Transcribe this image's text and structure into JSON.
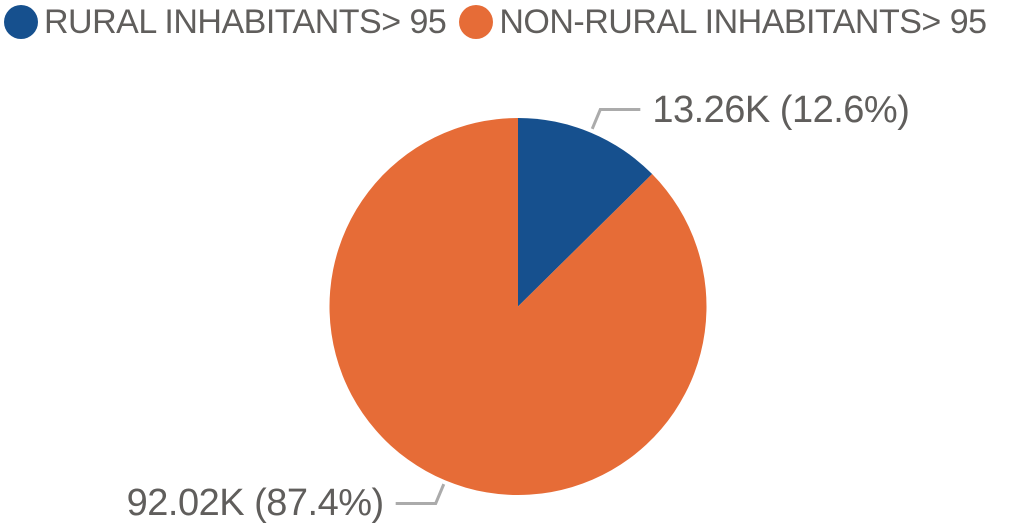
{
  "legend": {
    "items": [
      {
        "label": "RURAL INHABITANTS> 95",
        "color": "#16508E"
      },
      {
        "label": "NON-RURAL INHABITANTS> 95",
        "color": "#E66C37"
      }
    ]
  },
  "chart_data": {
    "type": "pie",
    "title": "",
    "categories": [
      "RURAL INHABITANTS> 95",
      "NON-RURAL INHABITANTS> 95"
    ],
    "values": [
      13260,
      92020
    ],
    "display_values": [
      "13.26K",
      "92.02K"
    ],
    "percentages": [
      12.6,
      87.4
    ],
    "labels": [
      "13.26K (12.6%)",
      "92.02K (87.4%)"
    ],
    "colors": [
      "#16508E",
      "#E66C37"
    ],
    "start_angle_deg": 0,
    "direction": "clockwise",
    "legend_position": "top-left",
    "label_style": "value-and-percent"
  },
  "style": {
    "background": "#FFFFFF",
    "label_text_color": "#605E5C",
    "legend_text_color": "#605E5C",
    "leader_line_color": "#ABABAB"
  }
}
